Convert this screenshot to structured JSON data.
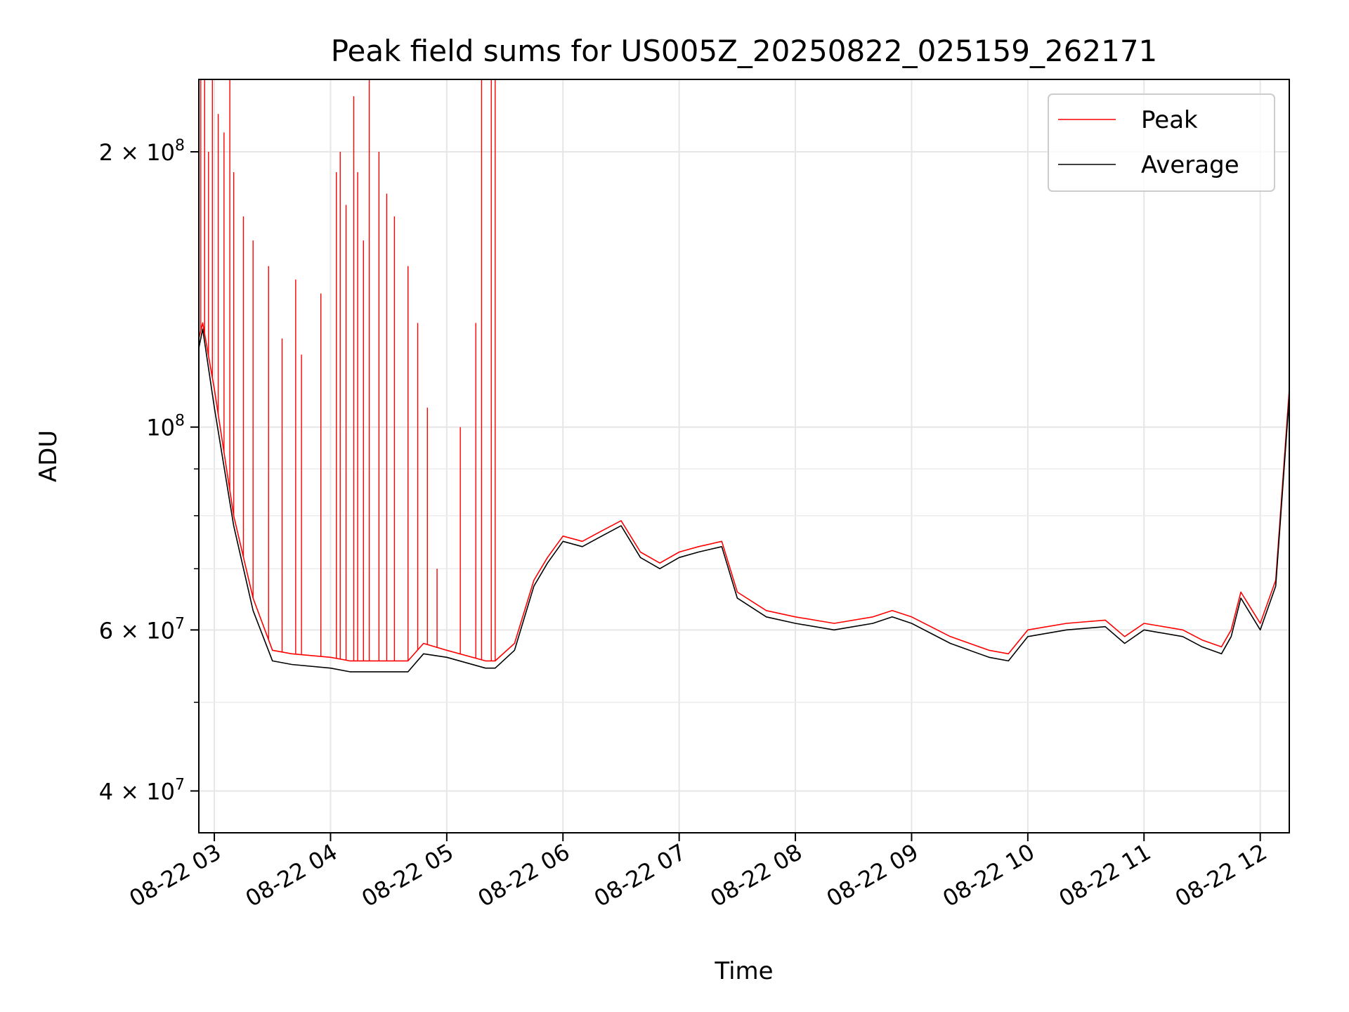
{
  "chart_data": {
    "type": "line",
    "title": "Peak field sums for US005Z_20250822_025159_262171",
    "xlabel": "Time",
    "ylabel": "ADU",
    "yscale": "log",
    "ylim": [
      36000000,
      240000000
    ],
    "xlim": [
      "2025-08-22 02:52",
      "2025-08-22 12:15"
    ],
    "grid": true,
    "legend_position": "top-right",
    "x_ticks": [
      {
        "t": "2025-08-22 03:00",
        "label": "08-22 03"
      },
      {
        "t": "2025-08-22 04:00",
        "label": "08-22 04"
      },
      {
        "t": "2025-08-22 05:00",
        "label": "08-22 05"
      },
      {
        "t": "2025-08-22 06:00",
        "label": "08-22 06"
      },
      {
        "t": "2025-08-22 07:00",
        "label": "08-22 07"
      },
      {
        "t": "2025-08-22 08:00",
        "label": "08-22 08"
      },
      {
        "t": "2025-08-22 09:00",
        "label": "08-22 09"
      },
      {
        "t": "2025-08-22 10:00",
        "label": "08-22 10"
      },
      {
        "t": "2025-08-22 11:00",
        "label": "08-22 11"
      },
      {
        "t": "2025-08-22 12:00",
        "label": "08-22 12"
      }
    ],
    "y_ticks_major": [
      {
        "value": 40000000,
        "base": "4 × 10",
        "exp": "7"
      },
      {
        "value": 60000000,
        "base": "6 × 10",
        "exp": "7"
      },
      {
        "value": 100000000,
        "base": "10",
        "exp": "8"
      },
      {
        "value": 200000000,
        "base": "2 × 10",
        "exp": "8"
      }
    ],
    "y_ticks_minor": [
      50000000,
      70000000,
      80000000,
      90000000
    ],
    "series": [
      {
        "name": "Peak",
        "color": "#ff0000",
        "x": [
          "2025-08-22 02:52",
          "2025-08-22 02:54",
          "2025-08-22 03:00",
          "2025-08-22 03:10",
          "2025-08-22 03:20",
          "2025-08-22 03:30",
          "2025-08-22 03:40",
          "2025-08-22 04:00",
          "2025-08-22 04:10",
          "2025-08-22 04:20",
          "2025-08-22 04:40",
          "2025-08-22 04:48",
          "2025-08-22 05:00",
          "2025-08-22 05:20",
          "2025-08-22 05:25",
          "2025-08-22 05:35",
          "2025-08-22 05:45",
          "2025-08-22 05:52",
          "2025-08-22 06:00",
          "2025-08-22 06:10",
          "2025-08-22 06:20",
          "2025-08-22 06:30",
          "2025-08-22 06:40",
          "2025-08-22 06:50",
          "2025-08-22 07:00",
          "2025-08-22 07:10",
          "2025-08-22 07:22",
          "2025-08-22 07:30",
          "2025-08-22 07:45",
          "2025-08-22 08:00",
          "2025-08-22 08:20",
          "2025-08-22 08:40",
          "2025-08-22 08:50",
          "2025-08-22 09:00",
          "2025-08-22 09:20",
          "2025-08-22 09:40",
          "2025-08-22 09:50",
          "2025-08-22 10:00",
          "2025-08-22 10:20",
          "2025-08-22 10:40",
          "2025-08-22 10:50",
          "2025-08-22 11:00",
          "2025-08-22 11:20",
          "2025-08-22 11:30",
          "2025-08-22 11:40",
          "2025-08-22 11:45",
          "2025-08-22 11:50",
          "2025-08-22 12:00",
          "2025-08-22 12:08",
          "2025-08-22 12:15"
        ],
        "y": [
          125000000,
          130000000,
          110000000,
          80000000,
          65000000,
          57000000,
          56500000,
          56000000,
          55500000,
          55500000,
          55500000,
          58000000,
          57000000,
          55500000,
          55500000,
          58000000,
          68000000,
          72000000,
          76000000,
          75000000,
          77000000,
          79000000,
          73000000,
          71000000,
          73000000,
          74000000,
          75000000,
          66000000,
          63000000,
          62000000,
          61000000,
          62000000,
          63000000,
          62000000,
          59000000,
          57000000,
          56500000,
          60000000,
          61000000,
          61500000,
          59000000,
          61000000,
          60000000,
          58500000,
          57500000,
          60000000,
          66000000,
          61000000,
          68000000,
          110000000
        ],
        "spikes": {
          "x": [
            "2025-08-22 02:53",
            "2025-08-22 02:55",
            "2025-08-22 02:57",
            "2025-08-22 02:59",
            "2025-08-22 03:02",
            "2025-08-22 03:05",
            "2025-08-22 03:08",
            "2025-08-22 03:10",
            "2025-08-22 03:15",
            "2025-08-22 03:20",
            "2025-08-22 03:28",
            "2025-08-22 03:35",
            "2025-08-22 03:42",
            "2025-08-22 03:45",
            "2025-08-22 03:55",
            "2025-08-22 04:03",
            "2025-08-22 04:05",
            "2025-08-22 04:08",
            "2025-08-22 04:12",
            "2025-08-22 04:14",
            "2025-08-22 04:17",
            "2025-08-22 04:20",
            "2025-08-22 04:25",
            "2025-08-22 04:29",
            "2025-08-22 04:33",
            "2025-08-22 04:40",
            "2025-08-22 04:45",
            "2025-08-22 04:50",
            "2025-08-22 04:55",
            "2025-08-22 05:07",
            "2025-08-22 05:15",
            "2025-08-22 05:18",
            "2025-08-22 05:23",
            "2025-08-22 05:25"
          ],
          "y": [
            240000000,
            240000000,
            200000000,
            240000000,
            220000000,
            210000000,
            240000000,
            190000000,
            170000000,
            160000000,
            150000000,
            125000000,
            145000000,
            120000000,
            140000000,
            190000000,
            200000000,
            175000000,
            230000000,
            190000000,
            160000000,
            240000000,
            200000000,
            180000000,
            170000000,
            150000000,
            130000000,
            105000000,
            70000000,
            100000000,
            130000000,
            240000000,
            240000000,
            240000000
          ]
        }
      },
      {
        "name": "Average",
        "color": "#000000",
        "x": [
          "2025-08-22 02:52",
          "2025-08-22 02:54",
          "2025-08-22 03:00",
          "2025-08-22 03:10",
          "2025-08-22 03:20",
          "2025-08-22 03:30",
          "2025-08-22 03:40",
          "2025-08-22 04:00",
          "2025-08-22 04:10",
          "2025-08-22 04:20",
          "2025-08-22 04:40",
          "2025-08-22 04:48",
          "2025-08-22 05:00",
          "2025-08-22 05:20",
          "2025-08-22 05:25",
          "2025-08-22 05:35",
          "2025-08-22 05:45",
          "2025-08-22 05:52",
          "2025-08-22 06:00",
          "2025-08-22 06:10",
          "2025-08-22 06:20",
          "2025-08-22 06:30",
          "2025-08-22 06:40",
          "2025-08-22 06:50",
          "2025-08-22 07:00",
          "2025-08-22 07:10",
          "2025-08-22 07:22",
          "2025-08-22 07:30",
          "2025-08-22 07:45",
          "2025-08-22 08:00",
          "2025-08-22 08:20",
          "2025-08-22 08:40",
          "2025-08-22 08:50",
          "2025-08-22 09:00",
          "2025-08-22 09:20",
          "2025-08-22 09:40",
          "2025-08-22 09:50",
          "2025-08-22 10:00",
          "2025-08-22 10:20",
          "2025-08-22 10:40",
          "2025-08-22 10:50",
          "2025-08-22 11:00",
          "2025-08-22 11:20",
          "2025-08-22 11:30",
          "2025-08-22 11:40",
          "2025-08-22 11:45",
          "2025-08-22 11:50",
          "2025-08-22 12:00",
          "2025-08-22 12:08",
          "2025-08-22 12:15"
        ],
        "y": [
          122000000,
          128000000,
          105000000,
          78000000,
          63000000,
          55500000,
          55000000,
          54500000,
          54000000,
          54000000,
          54000000,
          56500000,
          56000000,
          54500000,
          54500000,
          57000000,
          67000000,
          71000000,
          75000000,
          74000000,
          76000000,
          78000000,
          72000000,
          70000000,
          72000000,
          73000000,
          74000000,
          65000000,
          62000000,
          61000000,
          60000000,
          61000000,
          62000000,
          61000000,
          58000000,
          56000000,
          55500000,
          59000000,
          60000000,
          60500000,
          58000000,
          60000000,
          59000000,
          57500000,
          56500000,
          59000000,
          65000000,
          60000000,
          67000000,
          108000000
        ]
      }
    ]
  }
}
